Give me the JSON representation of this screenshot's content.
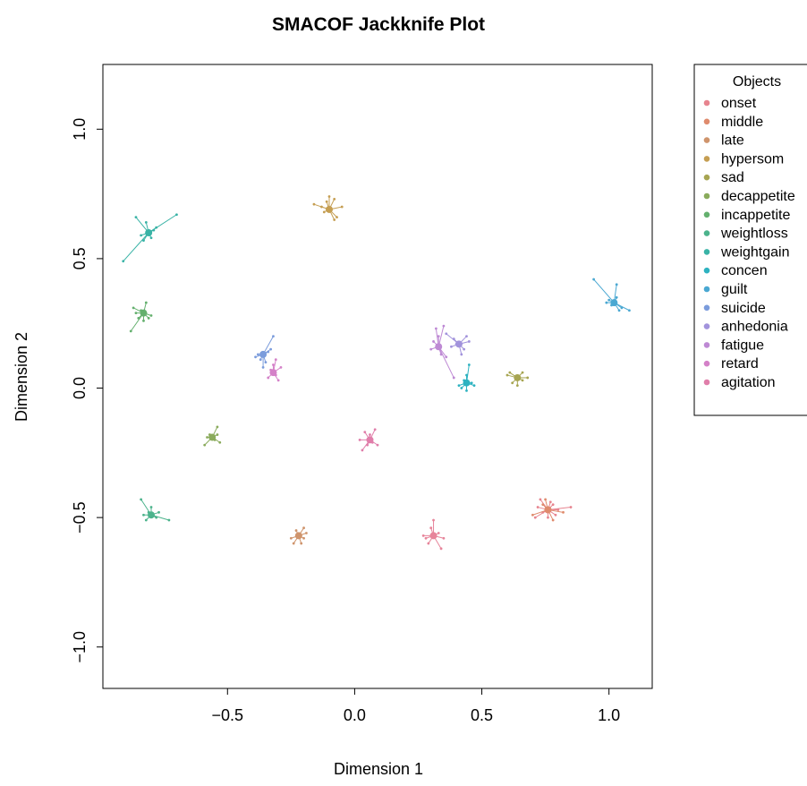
{
  "chart_data": {
    "type": "scatter",
    "title": "SMACOF Jackknife Plot",
    "xlabel": "Dimension 1",
    "ylabel": "Dimension 2",
    "xlim": [
      -0.99,
      1.17
    ],
    "ylim": [
      -1.16,
      1.25
    ],
    "x_ticks": [
      -0.5,
      0.0,
      0.5,
      1.0
    ],
    "x_tick_labels": [
      "−0.5",
      "0.0",
      "0.5",
      "1.0"
    ],
    "y_ticks": [
      -1.0,
      -0.5,
      0.0,
      0.5,
      1.0
    ],
    "y_tick_labels": [
      "−1.0",
      "−0.5",
      "0.0",
      "0.5",
      "1.0"
    ],
    "grid": false,
    "legend_title": "Objects",
    "legend_position": "right",
    "series": [
      {
        "name": "onset",
        "color": "#E7848F",
        "center": [
          0.76,
          -0.47
        ],
        "jack": [
          [
            0.71,
            -0.5
          ],
          [
            0.73,
            -0.43
          ],
          [
            0.77,
            -0.44
          ],
          [
            0.8,
            -0.47
          ],
          [
            0.85,
            -0.46
          ],
          [
            0.79,
            -0.49
          ],
          [
            0.74,
            -0.48
          ],
          [
            0.72,
            -0.46
          ],
          [
            0.78,
            -0.45
          ],
          [
            0.76,
            -0.5
          ]
        ]
      },
      {
        "name": "middle",
        "color": "#DF8B6D",
        "center": [
          0.76,
          -0.47
        ],
        "jack": [
          [
            0.75,
            -0.43
          ],
          [
            0.82,
            -0.48
          ],
          [
            0.7,
            -0.49
          ],
          [
            0.78,
            -0.51
          ],
          [
            0.74,
            -0.45
          ]
        ]
      },
      {
        "name": "late",
        "color": "#CF946C",
        "center": [
          -0.22,
          -0.57
        ],
        "jack": [
          [
            -0.24,
            -0.6
          ],
          [
            -0.2,
            -0.54
          ],
          [
            -0.19,
            -0.56
          ],
          [
            -0.23,
            -0.55
          ],
          [
            -0.21,
            -0.6
          ],
          [
            -0.25,
            -0.58
          ],
          [
            -0.2,
            -0.58
          ]
        ]
      },
      {
        "name": "hypersom",
        "color": "#C59E52",
        "center": [
          -0.1,
          0.69
        ],
        "jack": [
          [
            -0.16,
            0.71
          ],
          [
            -0.1,
            0.74
          ],
          [
            -0.08,
            0.73
          ],
          [
            -0.07,
            0.66
          ],
          [
            -0.08,
            0.65
          ],
          [
            -0.12,
            0.68
          ],
          [
            -0.05,
            0.7
          ],
          [
            -0.11,
            0.72
          ],
          [
            -0.13,
            0.7
          ]
        ]
      },
      {
        "name": "sad",
        "color": "#A7A552",
        "center": [
          0.64,
          0.04
        ],
        "jack": [
          [
            0.61,
            0.06
          ],
          [
            0.66,
            0.06
          ],
          [
            0.68,
            0.04
          ],
          [
            0.62,
            0.02
          ],
          [
            0.64,
            0.01
          ],
          [
            0.66,
            0.03
          ],
          [
            0.6,
            0.05
          ]
        ]
      },
      {
        "name": "decappetite",
        "color": "#8AAB5C",
        "center": [
          -0.56,
          -0.19
        ],
        "jack": [
          [
            -0.54,
            -0.15
          ],
          [
            -0.59,
            -0.22
          ],
          [
            -0.57,
            -0.18
          ],
          [
            -0.53,
            -0.21
          ],
          [
            -0.55,
            -0.2
          ],
          [
            -0.58,
            -0.19
          ],
          [
            -0.54,
            -0.18
          ]
        ]
      },
      {
        "name": "incappetite",
        "color": "#64B06E",
        "center": [
          -0.83,
          0.29
        ],
        "jack": [
          [
            -0.82,
            0.33
          ],
          [
            -0.88,
            0.22
          ],
          [
            -0.87,
            0.31
          ],
          [
            -0.84,
            0.3
          ],
          [
            -0.81,
            0.27
          ],
          [
            -0.86,
            0.29
          ],
          [
            -0.83,
            0.26
          ],
          [
            -0.8,
            0.28
          ],
          [
            -0.85,
            0.27
          ]
        ]
      },
      {
        "name": "weightloss",
        "color": "#4CB38C",
        "center": [
          -0.8,
          -0.49
        ],
        "jack": [
          [
            -0.84,
            -0.43
          ],
          [
            -0.73,
            -0.51
          ],
          [
            -0.82,
            -0.51
          ],
          [
            -0.8,
            -0.46
          ],
          [
            -0.78,
            -0.5
          ],
          [
            -0.81,
            -0.48
          ],
          [
            -0.83,
            -0.49
          ],
          [
            -0.77,
            -0.48
          ]
        ]
      },
      {
        "name": "weightgain",
        "color": "#39B3A6",
        "center": [
          -0.81,
          0.6
        ],
        "jack": [
          [
            -0.91,
            0.49
          ],
          [
            -0.86,
            0.66
          ],
          [
            -0.7,
            0.67
          ],
          [
            -0.82,
            0.64
          ],
          [
            -0.78,
            0.62
          ],
          [
            -0.8,
            0.58
          ],
          [
            -0.84,
            0.59
          ],
          [
            -0.83,
            0.57
          ],
          [
            -0.79,
            0.61
          ]
        ]
      },
      {
        "name": "concen",
        "color": "#2DB2C0",
        "center": [
          0.44,
          0.02
        ],
        "jack": [
          [
            0.45,
            0.09
          ],
          [
            0.41,
            0.01
          ],
          [
            0.47,
            0.01
          ],
          [
            0.44,
            -0.01
          ],
          [
            0.43,
            0.03
          ],
          [
            0.46,
            0.02
          ],
          [
            0.42,
            0.0
          ],
          [
            0.44,
            0.05
          ]
        ]
      },
      {
        "name": "guilt",
        "color": "#4AA8D2",
        "center": [
          1.02,
          0.33
        ],
        "jack": [
          [
            0.94,
            0.42
          ],
          [
            1.03,
            0.4
          ],
          [
            1.08,
            0.3
          ],
          [
            1.04,
            0.3
          ],
          [
            1.0,
            0.34
          ],
          [
            1.01,
            0.32
          ],
          [
            1.03,
            0.35
          ],
          [
            0.99,
            0.33
          ],
          [
            1.05,
            0.31
          ]
        ]
      },
      {
        "name": "suicide",
        "color": "#7B9CDC",
        "center": [
          -0.36,
          0.13
        ],
        "jack": [
          [
            -0.32,
            0.2
          ],
          [
            -0.39,
            0.12
          ],
          [
            -0.35,
            0.1
          ],
          [
            -0.33,
            0.15
          ],
          [
            -0.37,
            0.11
          ],
          [
            -0.34,
            0.14
          ],
          [
            -0.36,
            0.08
          ],
          [
            -0.38,
            0.13
          ]
        ]
      },
      {
        "name": "anhedonia",
        "color": "#A293DC",
        "center": [
          0.41,
          0.17
        ],
        "jack": [
          [
            0.36,
            0.21
          ],
          [
            0.44,
            0.2
          ],
          [
            0.39,
            0.19
          ],
          [
            0.42,
            0.13
          ],
          [
            0.38,
            0.16
          ],
          [
            0.45,
            0.18
          ],
          [
            0.43,
            0.15
          ],
          [
            0.4,
            0.17
          ]
        ]
      },
      {
        "name": "fatigue",
        "color": "#BE89D4",
        "center": [
          0.33,
          0.16
        ],
        "jack": [
          [
            0.32,
            0.23
          ],
          [
            0.35,
            0.24
          ],
          [
            0.39,
            0.04
          ],
          [
            0.31,
            0.18
          ],
          [
            0.34,
            0.13
          ],
          [
            0.36,
            0.12
          ],
          [
            0.3,
            0.15
          ],
          [
            0.33,
            0.2
          ]
        ]
      },
      {
        "name": "retard",
        "color": "#D481C8",
        "center": [
          -0.32,
          0.06
        ],
        "jack": [
          [
            -0.31,
            0.11
          ],
          [
            -0.34,
            0.04
          ],
          [
            -0.3,
            0.03
          ],
          [
            -0.32,
            0.09
          ],
          [
            -0.33,
            0.07
          ],
          [
            -0.31,
            0.05
          ],
          [
            -0.29,
            0.08
          ]
        ]
      },
      {
        "name": "agitation",
        "color": "#E07EAA",
        "center": [
          0.06,
          -0.2
        ],
        "jack": [
          [
            0.03,
            -0.24
          ],
          [
            0.08,
            -0.16
          ],
          [
            0.05,
            -0.22
          ],
          [
            0.09,
            -0.22
          ],
          [
            0.04,
            -0.17
          ],
          [
            0.07,
            -0.21
          ],
          [
            0.06,
            -0.18
          ],
          [
            0.02,
            -0.2
          ]
        ]
      },
      {
        "name": "",
        "color": "#E7849A",
        "center": [
          0.31,
          -0.57
        ],
        "jack": [
          [
            0.31,
            -0.51
          ],
          [
            0.27,
            -0.57
          ],
          [
            0.34,
            -0.62
          ],
          [
            0.3,
            -0.54
          ],
          [
            0.35,
            -0.58
          ],
          [
            0.29,
            -0.6
          ],
          [
            0.33,
            -0.56
          ],
          [
            0.28,
            -0.58
          ]
        ]
      }
    ]
  }
}
